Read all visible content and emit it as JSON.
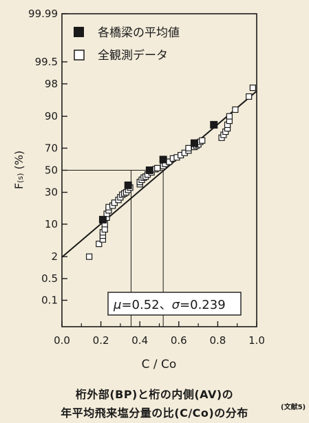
{
  "chart_data": {
    "type": "scatter",
    "xlabel": "C / Co",
    "ylabel": "F",
    "ylabel_sub": "(s)",
    "ylabel_unit": " (%)",
    "xlim": [
      0.0,
      1.0
    ],
    "x_ticks": [
      "0.0",
      "0.2",
      "0.4",
      "0.6",
      "0.8",
      "1.0"
    ],
    "y_ticks": [
      "99.99",
      "99.5",
      "98",
      "90",
      "70",
      "50",
      "30",
      "10",
      "2",
      "0.5",
      "0.1"
    ],
    "y_scale": "normal-probability",
    "legend_position": "top-left",
    "legend": [
      {
        "marker": "filled-square",
        "label": "各橋梁の平均値"
      },
      {
        "marker": "open-square",
        "label": "全観測データ"
      }
    ],
    "annotation": {
      "mu_symbol": "μ",
      "mu_value": "=0.52、",
      "sigma_symbol": "σ",
      "sigma_value": "=0.239"
    },
    "fit_line": {
      "from": [
        0.0,
        1.94
      ],
      "to": [
        1.0,
        97.0
      ]
    },
    "reference_lines": [
      {
        "x": 0.355,
        "y": 50
      },
      {
        "x": 0.52,
        "y": 50
      }
    ],
    "bridge_means": [
      {
        "x": 0.21,
        "y": 12
      },
      {
        "x": 0.34,
        "y": 36
      },
      {
        "x": 0.45,
        "y": 50
      },
      {
        "x": 0.52,
        "y": 60
      },
      {
        "x": 0.68,
        "y": 74
      },
      {
        "x": 0.78,
        "y": 86
      }
    ],
    "all_data": [
      {
        "x": 0.14,
        "y": 2
      },
      {
        "x": 0.19,
        "y": 4
      },
      {
        "x": 0.21,
        "y": 5
      },
      {
        "x": 0.21,
        "y": 6
      },
      {
        "x": 0.21,
        "y": 7
      },
      {
        "x": 0.22,
        "y": 8
      },
      {
        "x": 0.22,
        "y": 10
      },
      {
        "x": 0.23,
        "y": 13
      },
      {
        "x": 0.23,
        "y": 15
      },
      {
        "x": 0.24,
        "y": 17
      },
      {
        "x": 0.24,
        "y": 19
      },
      {
        "x": 0.26,
        "y": 20
      },
      {
        "x": 0.27,
        "y": 22
      },
      {
        "x": 0.29,
        "y": 24
      },
      {
        "x": 0.3,
        "y": 26
      },
      {
        "x": 0.31,
        "y": 28
      },
      {
        "x": 0.32,
        "y": 29
      },
      {
        "x": 0.33,
        "y": 30
      },
      {
        "x": 0.34,
        "y": 32
      },
      {
        "x": 0.35,
        "y": 34
      },
      {
        "x": 0.4,
        "y": 37
      },
      {
        "x": 0.4,
        "y": 39
      },
      {
        "x": 0.41,
        "y": 41
      },
      {
        "x": 0.42,
        "y": 43
      },
      {
        "x": 0.43,
        "y": 44
      },
      {
        "x": 0.44,
        "y": 46
      },
      {
        "x": 0.46,
        "y": 48
      },
      {
        "x": 0.48,
        "y": 51
      },
      {
        "x": 0.49,
        "y": 52
      },
      {
        "x": 0.52,
        "y": 54
      },
      {
        "x": 0.53,
        "y": 56
      },
      {
        "x": 0.55,
        "y": 58
      },
      {
        "x": 0.57,
        "y": 61
      },
      {
        "x": 0.59,
        "y": 62
      },
      {
        "x": 0.61,
        "y": 64
      },
      {
        "x": 0.63,
        "y": 66
      },
      {
        "x": 0.65,
        "y": 68
      },
      {
        "x": 0.65,
        "y": 70
      },
      {
        "x": 0.68,
        "y": 71
      },
      {
        "x": 0.69,
        "y": 72
      },
      {
        "x": 0.7,
        "y": 73
      },
      {
        "x": 0.71,
        "y": 75
      },
      {
        "x": 0.72,
        "y": 76
      },
      {
        "x": 0.82,
        "y": 78
      },
      {
        "x": 0.83,
        "y": 80
      },
      {
        "x": 0.84,
        "y": 82
      },
      {
        "x": 0.85,
        "y": 84
      },
      {
        "x": 0.85,
        "y": 86
      },
      {
        "x": 0.86,
        "y": 88
      },
      {
        "x": 0.86,
        "y": 90
      },
      {
        "x": 0.89,
        "y": 92.5
      },
      {
        "x": 0.96,
        "y": 96
      },
      {
        "x": 0.98,
        "y": 97.5
      }
    ]
  },
  "caption": {
    "line1": "桁外部(BP)と桁の内側(AV)の",
    "line2": "年平均飛来塩分量の比(C/Co)の分布",
    "ref": "(文献5)"
  },
  "colors": {
    "background": "#f3ecda",
    "ink": "#1a1a1a",
    "marker_fill_open": "#ffffff"
  }
}
